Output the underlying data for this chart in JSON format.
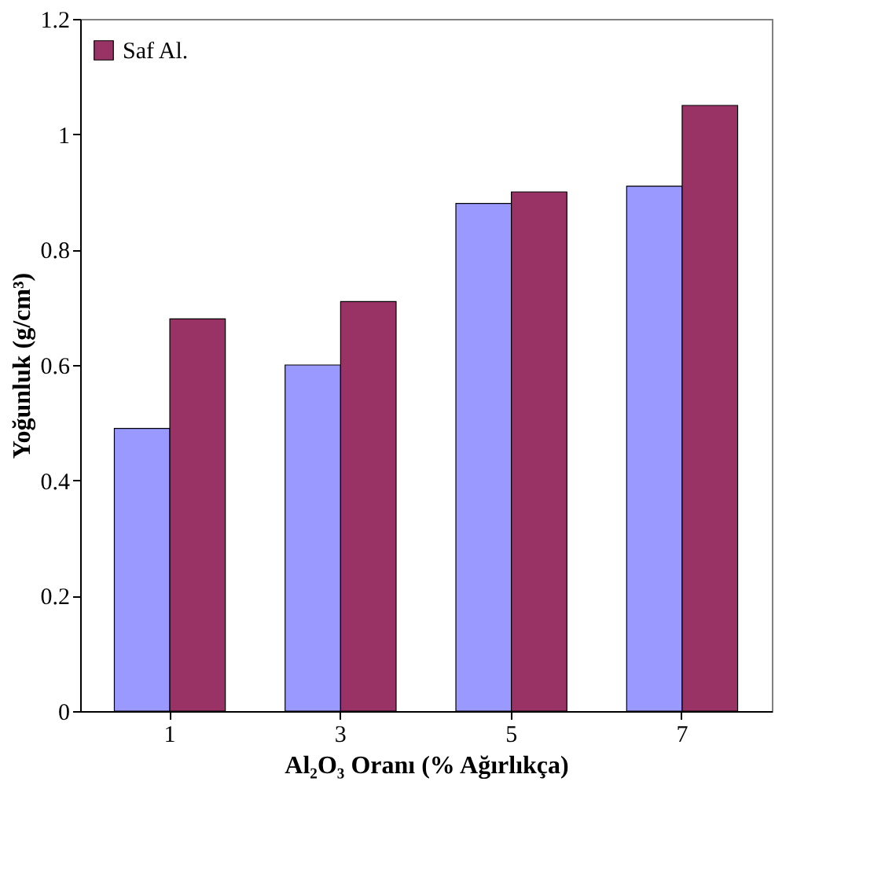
{
  "chart_data": {
    "type": "bar",
    "xlabel": "Al₂O₃ Oranı (% Ağırlıkça)",
    "ylabel": "Yoğunluk (g/cm³)",
    "categories": [
      "1",
      "3",
      "5",
      "7"
    ],
    "series": [
      {
        "color": "#9999ff",
        "values": [
          0.49,
          0.6,
          0.88,
          0.91
        ]
      },
      {
        "name": "Saf Al.",
        "color": "#993366",
        "values": [
          0.68,
          0.71,
          0.9,
          1.05
        ]
      }
    ],
    "ylim": [
      0,
      1.2
    ],
    "yticks": [
      0,
      0.2,
      0.4,
      0.6,
      0.8,
      1,
      1.2
    ],
    "grid": false,
    "legend": "top left"
  }
}
